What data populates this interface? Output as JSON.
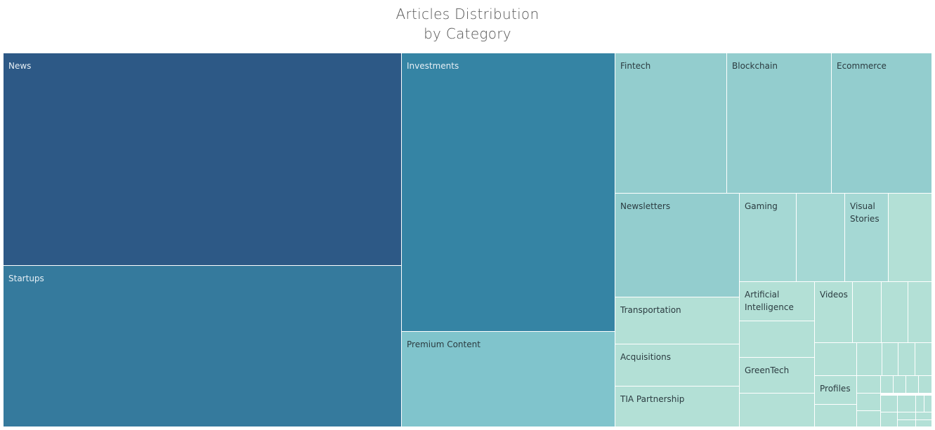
{
  "chart_data": {
    "type": "treemap",
    "title_lines": [
      "Articles Distribution",
      "by Category"
    ],
    "colors": {
      "dark": "#2d5986",
      "blue": "#357a9d",
      "teal": "#3584a4",
      "medium": "#80c4cc",
      "light": "#93cdce",
      "lighter": "#a5d8d4",
      "lightest": "#b3e0d6",
      "border": "#ffffff",
      "text_light": "#e6eff5",
      "text_dark": "#2b3b40"
    },
    "categories": [
      {
        "label": "News",
        "shade": "dark"
      },
      {
        "label": "Startups",
        "shade": "blue"
      },
      {
        "label": "Investments",
        "shade": "teal"
      },
      {
        "label": "Premium Content",
        "shade": "medium"
      },
      {
        "label": "Fintech",
        "shade": "light"
      },
      {
        "label": "Blockchain",
        "shade": "light"
      },
      {
        "label": "Ecommerce",
        "shade": "light"
      },
      {
        "label": "Newsletters",
        "shade": "light"
      },
      {
        "label": "Gaming",
        "shade": "lighter"
      },
      {
        "label": "",
        "shade": "lighter"
      },
      {
        "label": "Visual\nStories",
        "shade": "lighter"
      },
      {
        "label": "",
        "shade": "lightest"
      },
      {
        "label": "Transportation",
        "shade": "lightest"
      },
      {
        "label": "Acquisitions",
        "shade": "lightest"
      },
      {
        "label": "TIA Partnership",
        "shade": "lightest"
      },
      {
        "label": "Artificial\nIntelligence",
        "shade": "lightest"
      },
      {
        "label": "",
        "shade": "lightest"
      },
      {
        "label": "GreenTech",
        "shade": "lightest"
      },
      {
        "label": "",
        "shade": "lightest"
      },
      {
        "label": "Videos",
        "shade": "lightest"
      },
      {
        "label": "",
        "shade": "lightest"
      },
      {
        "label": "",
        "shade": "lightest"
      },
      {
        "label": "",
        "shade": "lightest"
      },
      {
        "label": "",
        "shade": "lightest"
      },
      {
        "label": "",
        "shade": "lightest"
      },
      {
        "label": "",
        "shade": "lightest"
      },
      {
        "label": "",
        "shade": "lightest"
      },
      {
        "label": "",
        "shade": "lightest"
      },
      {
        "label": "Profiles",
        "shade": "lightest"
      },
      {
        "label": "",
        "shade": "lightest"
      },
      {
        "label": "",
        "shade": "lightest"
      },
      {
        "label": "",
        "shade": "lightest"
      },
      {
        "label": "",
        "shade": "lightest"
      },
      {
        "label": "",
        "shade": "lightest"
      },
      {
        "label": "",
        "shade": "lightest"
      },
      {
        "label": "",
        "shade": "lightest"
      },
      {
        "label": "",
        "shade": "lightest"
      },
      {
        "label": "",
        "shade": "lightest"
      },
      {
        "label": "",
        "shade": "lightest"
      },
      {
        "label": "",
        "shade": "lightest"
      },
      {
        "label": "",
        "shade": "lightest"
      },
      {
        "label": "",
        "shade": "lightest"
      },
      {
        "label": "",
        "shade": "lightest"
      },
      {
        "label": "",
        "shade": "lightest"
      },
      {
        "label": "",
        "shade": "lightest"
      },
      {
        "label": "",
        "shade": "lightest"
      }
    ]
  }
}
